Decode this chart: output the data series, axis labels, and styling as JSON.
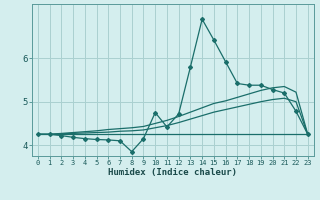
{
  "xlabel": "Humidex (Indice chaleur)",
  "bg_color": "#d4eeee",
  "grid_color": "#aad0d0",
  "line_color": "#1a6e6a",
  "xlim": [
    -0.5,
    23.5
  ],
  "ylim": [
    3.75,
    7.25
  ],
  "yticks": [
    4,
    5,
    6
  ],
  "xticks": [
    0,
    1,
    2,
    3,
    4,
    5,
    6,
    7,
    8,
    9,
    10,
    11,
    12,
    13,
    14,
    15,
    16,
    17,
    18,
    19,
    20,
    21,
    22,
    23
  ],
  "line1_x": [
    0,
    1,
    2,
    3,
    4,
    5,
    6,
    7,
    8,
    9,
    10,
    11,
    12,
    13,
    14,
    15,
    16,
    17,
    18,
    19,
    20,
    21,
    22,
    23
  ],
  "line1_y": [
    4.25,
    4.25,
    4.22,
    4.18,
    4.15,
    4.13,
    4.12,
    4.1,
    3.85,
    4.15,
    4.75,
    4.42,
    4.72,
    5.8,
    6.9,
    6.42,
    5.92,
    5.42,
    5.38,
    5.38,
    5.28,
    5.2,
    4.78,
    4.25
  ],
  "line2_x": [
    0,
    1,
    2,
    3,
    4,
    5,
    6,
    7,
    8,
    9,
    10,
    11,
    12,
    13,
    14,
    15,
    16,
    17,
    18,
    19,
    20,
    21,
    22,
    23
  ],
  "line2_y": [
    4.25,
    4.25,
    4.25,
    4.25,
    4.25,
    4.25,
    4.25,
    4.25,
    4.25,
    4.25,
    4.25,
    4.25,
    4.25,
    4.25,
    4.25,
    4.25,
    4.25,
    4.25,
    4.25,
    4.25,
    4.25,
    4.25,
    4.25,
    4.25
  ],
  "line3_x": [
    0,
    1,
    2,
    3,
    4,
    5,
    6,
    7,
    8,
    9,
    10,
    11,
    12,
    13,
    14,
    15,
    16,
    17,
    18,
    19,
    20,
    21,
    22,
    23
  ],
  "line3_y": [
    4.25,
    4.25,
    4.26,
    4.27,
    4.28,
    4.29,
    4.3,
    4.32,
    4.33,
    4.35,
    4.4,
    4.45,
    4.52,
    4.6,
    4.68,
    4.76,
    4.82,
    4.88,
    4.94,
    5.0,
    5.05,
    5.08,
    5.0,
    4.25
  ],
  "line4_x": [
    0,
    1,
    2,
    3,
    4,
    5,
    6,
    7,
    8,
    9,
    10,
    11,
    12,
    13,
    14,
    15,
    16,
    17,
    18,
    19,
    20,
    21,
    22,
    23
  ],
  "line4_y": [
    4.25,
    4.25,
    4.27,
    4.29,
    4.31,
    4.33,
    4.36,
    4.38,
    4.4,
    4.43,
    4.5,
    4.57,
    4.66,
    4.76,
    4.86,
    4.96,
    5.02,
    5.1,
    5.18,
    5.26,
    5.32,
    5.35,
    5.22,
    4.25
  ]
}
